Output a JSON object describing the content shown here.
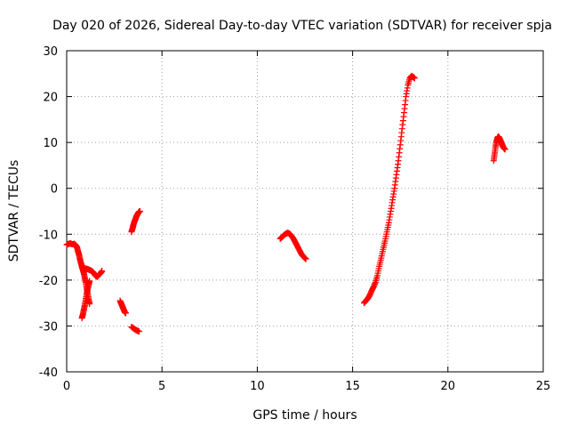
{
  "chart_data": {
    "type": "scatter",
    "title": "Day 020 of 2026, Sidereal Day-to-day VTEC variation (SDTVAR) for receiver spja",
    "xlabel": "GPS time / hours",
    "ylabel": "SDTVAR / TECUs",
    "xlim": [
      0,
      25
    ],
    "ylim": [
      -40,
      30
    ],
    "x_ticks": [
      0,
      5,
      10,
      15,
      20,
      25
    ],
    "y_ticks": [
      -40,
      -30,
      -20,
      -10,
      0,
      10,
      20,
      30
    ],
    "x_tick_labels": [
      "0",
      "5",
      "10",
      "15",
      "20",
      "25"
    ],
    "y_tick_labels": [
      "-40",
      "-30",
      "-20",
      "-10",
      "0",
      "10",
      "20",
      "30"
    ],
    "grid": true,
    "marker": "+",
    "series_color": "#ff0000",
    "series": [
      {
        "name": "SDTVAR",
        "segments": [
          [
            [
              0.0,
              -12.3
            ],
            [
              0.1,
              -12.1
            ],
            [
              0.2,
              -12.0
            ],
            [
              0.3,
              -12.2
            ],
            [
              0.4,
              -12.1
            ],
            [
              0.5,
              -12.5
            ],
            [
              0.55,
              -13.0
            ],
            [
              0.6,
              -13.8
            ],
            [
              0.65,
              -14.5
            ],
            [
              0.7,
              -15.5
            ],
            [
              0.75,
              -16.3
            ],
            [
              0.8,
              -17.0
            ],
            [
              0.85,
              -17.8
            ],
            [
              0.9,
              -18.5
            ],
            [
              0.95,
              -19.5
            ],
            [
              1.0,
              -20.5
            ],
            [
              1.05,
              -21.8
            ],
            [
              1.1,
              -23.0
            ],
            [
              1.15,
              -24.2
            ],
            [
              1.2,
              -25.2
            ]
          ],
          [
            [
              0.8,
              -17.2
            ],
            [
              0.9,
              -17.4
            ],
            [
              1.0,
              -17.5
            ],
            [
              1.1,
              -17.6
            ],
            [
              1.2,
              -17.8
            ],
            [
              1.3,
              -18.0
            ],
            [
              1.4,
              -18.3
            ],
            [
              1.5,
              -19.0
            ],
            [
              1.6,
              -19.3
            ],
            [
              1.7,
              -18.8
            ],
            [
              1.8,
              -18.4
            ],
            [
              1.85,
              -18.0
            ]
          ],
          [
            [
              0.8,
              -28.3
            ],
            [
              0.85,
              -27.5
            ],
            [
              0.9,
              -26.5
            ],
            [
              0.95,
              -25.5
            ],
            [
              1.0,
              -24.3
            ],
            [
              1.05,
              -23.0
            ],
            [
              1.1,
              -22.0
            ],
            [
              1.15,
              -21.0
            ],
            [
              1.2,
              -20.2
            ]
          ],
          [
            [
              2.8,
              -24.5
            ],
            [
              2.85,
              -25.0
            ],
            [
              2.9,
              -25.5
            ],
            [
              2.95,
              -26.0
            ],
            [
              3.0,
              -26.5
            ],
            [
              3.05,
              -27.0
            ],
            [
              3.1,
              -27.2
            ]
          ],
          [
            [
              3.4,
              -30.2
            ],
            [
              3.5,
              -30.5
            ],
            [
              3.6,
              -30.8
            ],
            [
              3.7,
              -31.0
            ],
            [
              3.8,
              -31.2
            ]
          ],
          [
            [
              3.4,
              -9.5
            ],
            [
              3.45,
              -8.8
            ],
            [
              3.5,
              -8.0
            ],
            [
              3.55,
              -7.3
            ],
            [
              3.6,
              -6.8
            ],
            [
              3.65,
              -6.2
            ],
            [
              3.7,
              -5.8
            ],
            [
              3.75,
              -5.4
            ],
            [
              3.8,
              -5.1
            ],
            [
              3.85,
              -5.0
            ]
          ],
          [
            [
              11.2,
              -11.0
            ],
            [
              11.3,
              -10.6
            ],
            [
              11.4,
              -10.2
            ],
            [
              11.5,
              -9.9
            ],
            [
              11.6,
              -9.7
            ],
            [
              11.7,
              -9.9
            ],
            [
              11.8,
              -10.4
            ],
            [
              11.9,
              -11.0
            ],
            [
              12.0,
              -11.8
            ],
            [
              12.1,
              -12.6
            ],
            [
              12.2,
              -13.4
            ],
            [
              12.3,
              -14.2
            ],
            [
              12.4,
              -14.8
            ],
            [
              12.5,
              -15.2
            ],
            [
              12.55,
              -15.4
            ]
          ],
          [
            [
              15.6,
              -25.0
            ],
            [
              15.7,
              -24.5
            ],
            [
              15.8,
              -24.0
            ],
            [
              15.9,
              -23.3
            ],
            [
              16.0,
              -22.3
            ],
            [
              16.1,
              -21.5
            ],
            [
              16.2,
              -20.5
            ],
            [
              16.3,
              -19.0
            ],
            [
              16.4,
              -17.0
            ],
            [
              16.5,
              -15.2
            ],
            [
              16.6,
              -13.3
            ],
            [
              16.7,
              -11.5
            ],
            [
              16.8,
              -9.5
            ],
            [
              16.9,
              -7.5
            ],
            [
              17.0,
              -5.0
            ],
            [
              17.1,
              -2.5
            ],
            [
              17.2,
              0.0
            ],
            [
              17.3,
              3.0
            ],
            [
              17.4,
              6.0
            ],
            [
              17.5,
              9.5
            ],
            [
              17.6,
              13.0
            ],
            [
              17.7,
              16.5
            ],
            [
              17.8,
              20.0
            ],
            [
              17.9,
              22.5
            ],
            [
              18.0,
              24.0
            ],
            [
              18.1,
              24.5
            ],
            [
              18.2,
              24.2
            ],
            [
              18.25,
              24.0
            ]
          ],
          [
            [
              22.4,
              6.0
            ],
            [
              22.45,
              7.5
            ],
            [
              22.5,
              9.0
            ],
            [
              22.55,
              10.2
            ],
            [
              22.6,
              11.0
            ],
            [
              22.65,
              11.3
            ],
            [
              22.7,
              11.0
            ],
            [
              22.75,
              10.5
            ],
            [
              22.8,
              10.0
            ],
            [
              22.85,
              9.5
            ],
            [
              22.9,
              9.0
            ],
            [
              22.95,
              8.7
            ],
            [
              23.0,
              8.5
            ]
          ]
        ]
      }
    ]
  }
}
